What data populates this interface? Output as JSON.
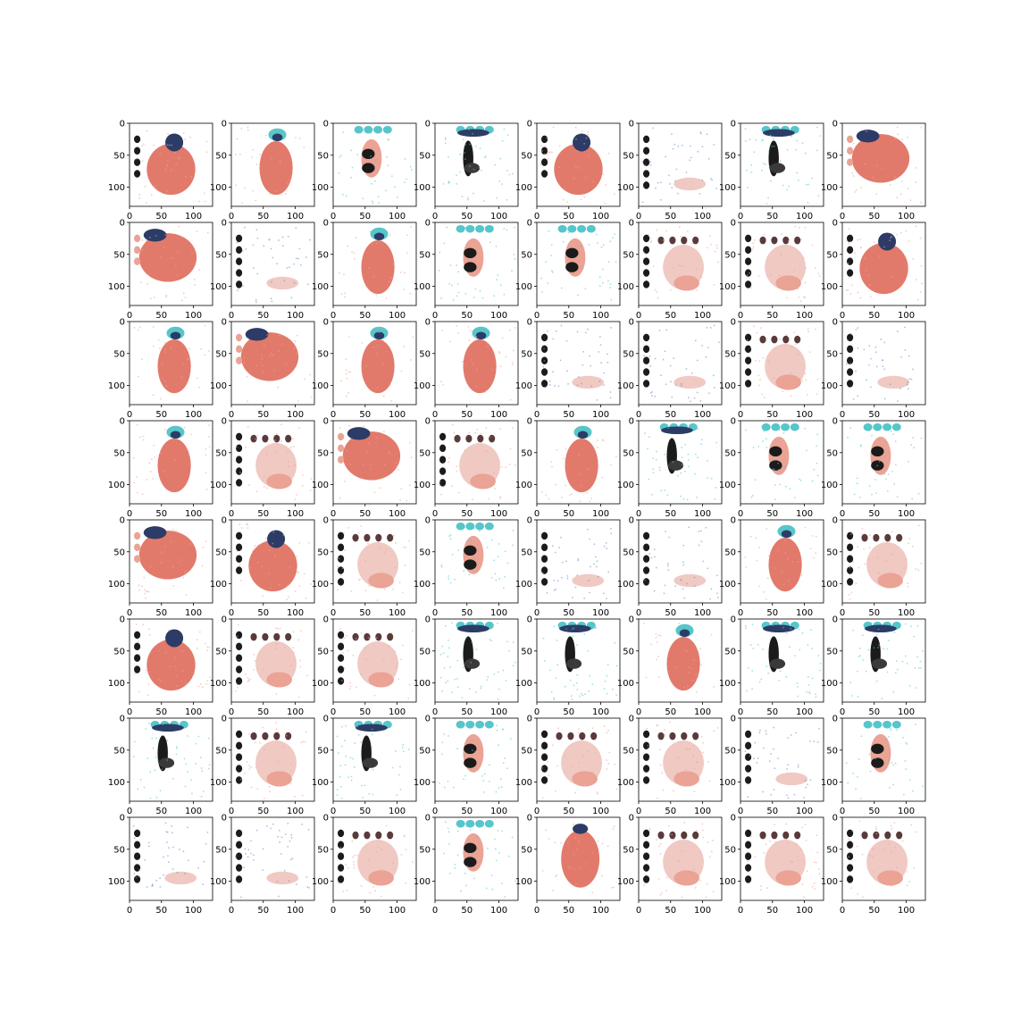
{
  "figure": {
    "rows": 8,
    "cols": 8,
    "x_ticks": [
      "0",
      "50",
      "100"
    ],
    "y_ticks": [
      "0",
      "50",
      "100"
    ],
    "panels": [
      "A",
      "B",
      "C",
      "D",
      "A",
      "E",
      "D",
      "F",
      "F",
      "E",
      "B",
      "C",
      "C",
      "G",
      "G",
      "A",
      "B",
      "F",
      "B",
      "B",
      "E",
      "E",
      "G",
      "E",
      "B",
      "G",
      "F",
      "G",
      "B",
      "D",
      "C",
      "C",
      "F",
      "A",
      "G",
      "C",
      "E",
      "E",
      "B",
      "G",
      "A",
      "G",
      "G",
      "D",
      "D",
      "B",
      "D",
      "D",
      "D",
      "G",
      "D",
      "C",
      "G",
      "G",
      "E",
      "C",
      "E",
      "E",
      "G",
      "C",
      "H",
      "G",
      "G",
      "G"
    ],
    "colors": {
      "salmon": "#e27a6c",
      "salmon_light": "#eaa394",
      "pale_pink": "#f0c9c3",
      "dark": "#1b1b1b",
      "teal": "#56c6cb",
      "navy": "#2c3c66",
      "axis": "#000000"
    }
  }
}
